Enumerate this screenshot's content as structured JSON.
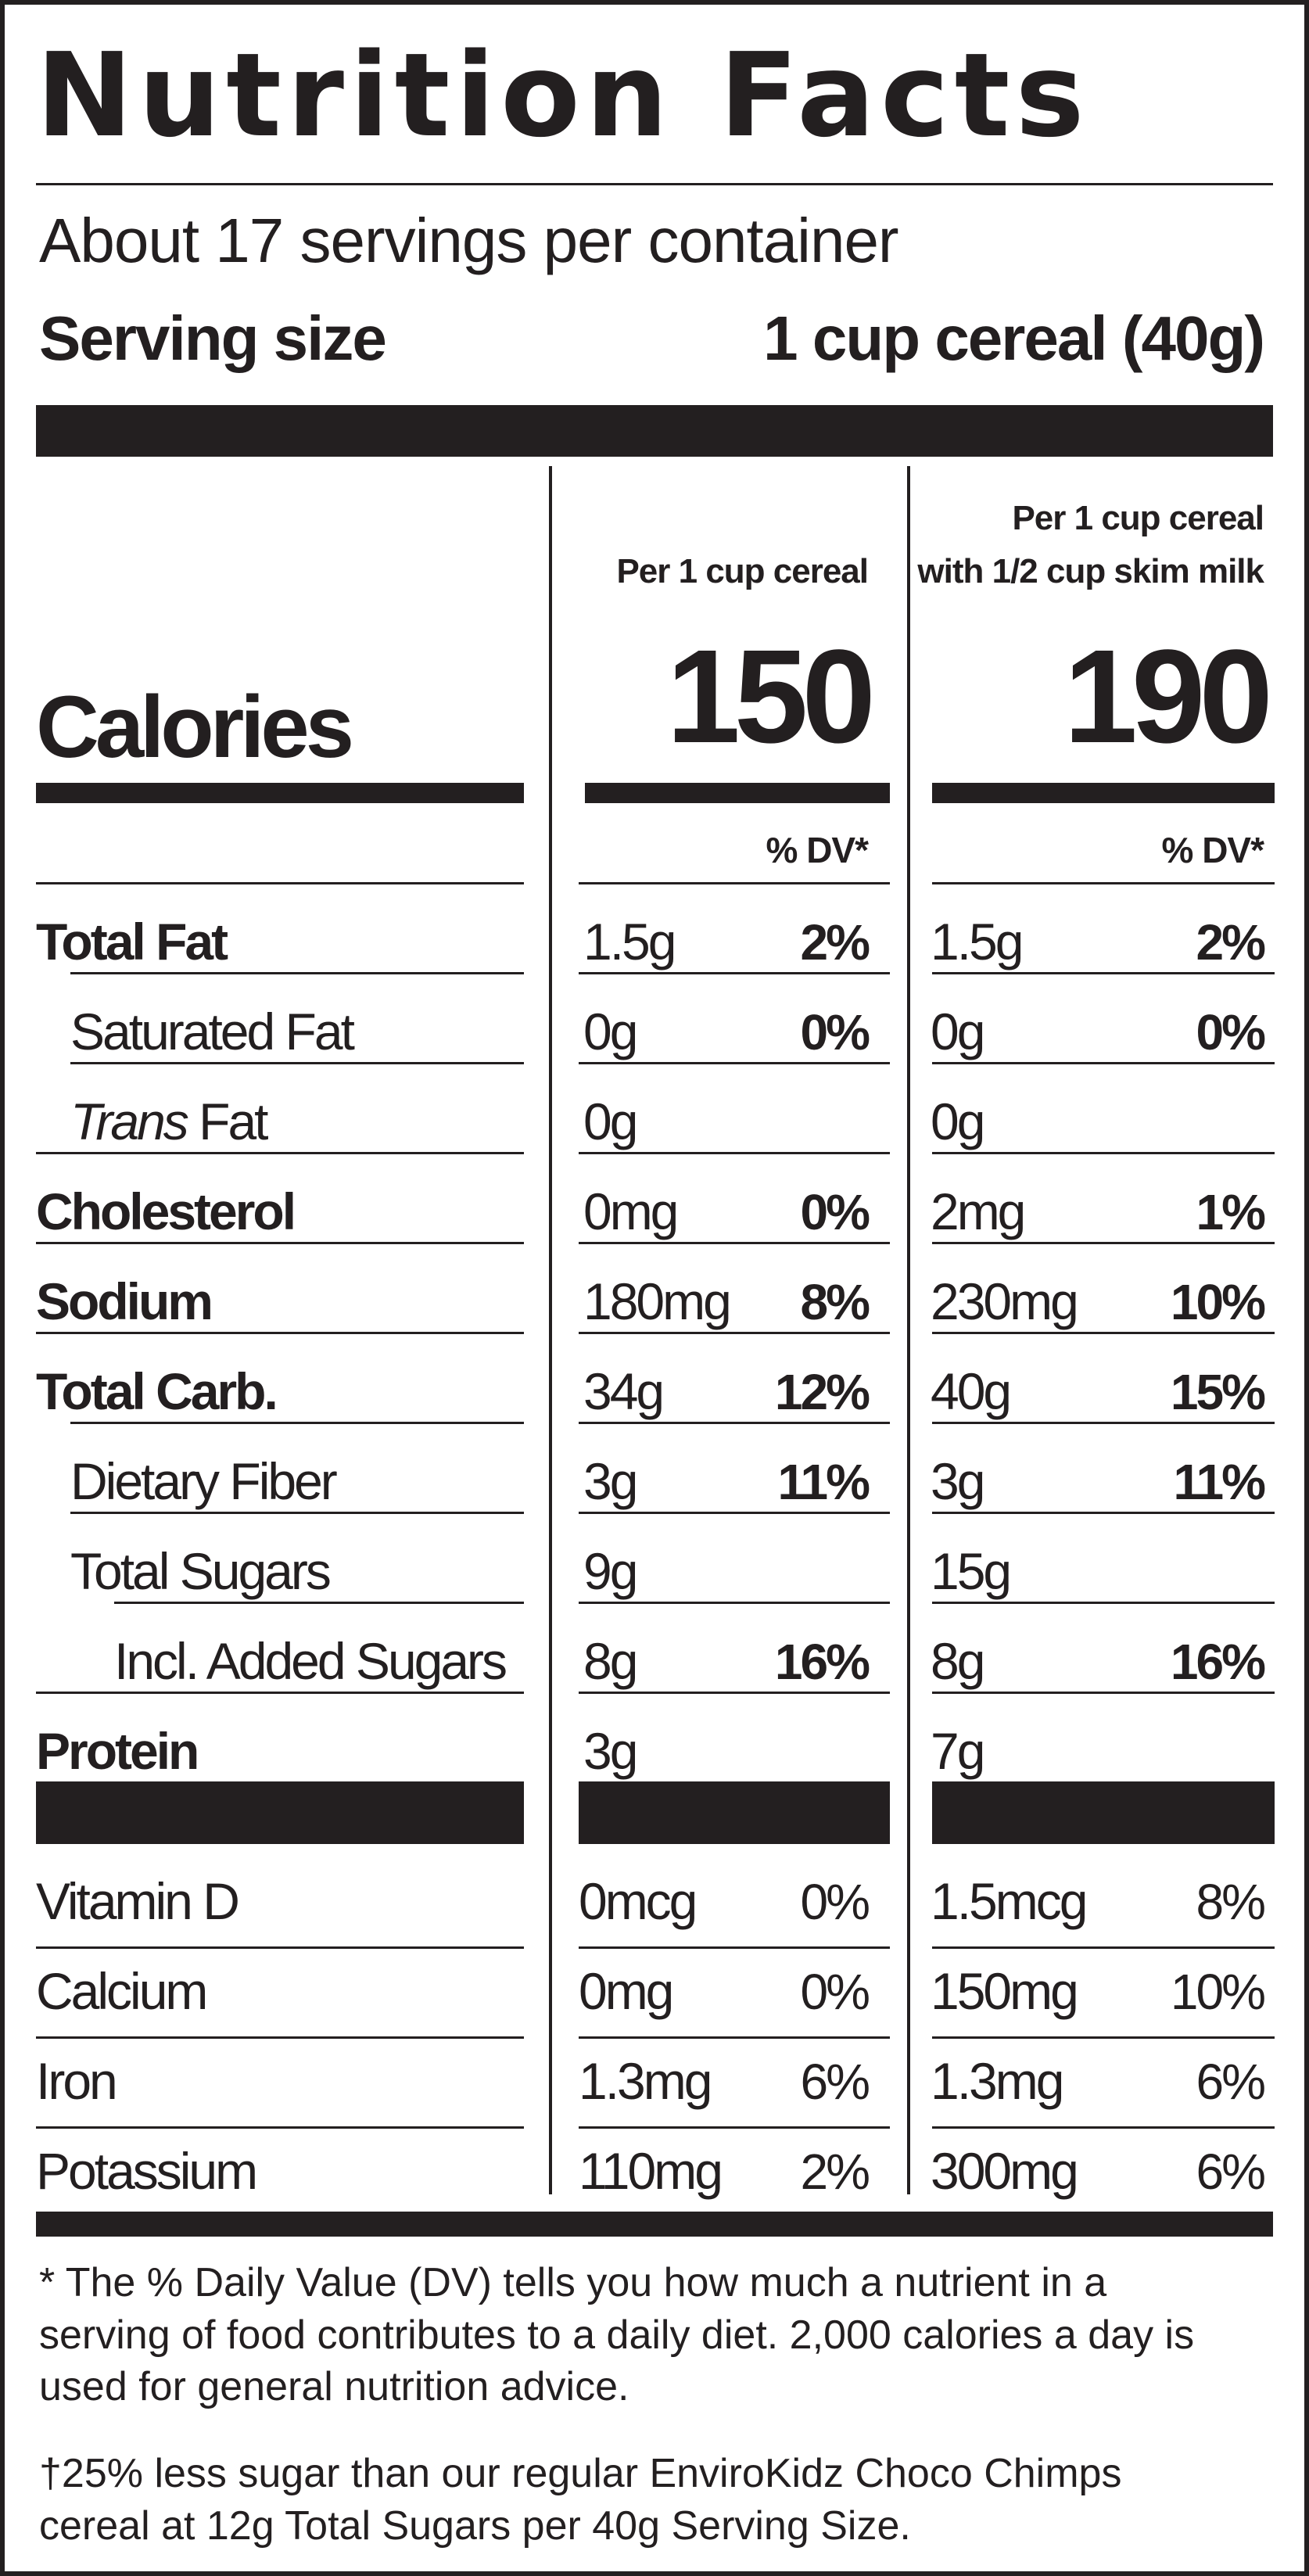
{
  "header": {
    "title": "Nutrition Facts",
    "servings_per_container": "About 17 servings per container",
    "serving_size_label": "Serving size",
    "serving_size_value": "1 cup cereal (40g)"
  },
  "columns": {
    "col1_head": "Per 1 cup cereal",
    "col2_head_line1": "Per 1  cup cereal",
    "col2_head_line2": "with 1/2 cup skim milk",
    "dv_head": "% DV*"
  },
  "calories": {
    "label": "Calories",
    "col1": "150",
    "col2": "190"
  },
  "nutrients": [
    {
      "name": "Total Fat",
      "amt1": "1.5g",
      "dv1": "2%",
      "amt2": "1.5g",
      "dv2": "2%"
    },
    {
      "name": "Saturated Fat",
      "amt1": "0g",
      "dv1": "0%",
      "amt2": "0g",
      "dv2": "0%"
    },
    {
      "name_italic": "Trans",
      "name_rest": " Fat",
      "amt1": "0g",
      "dv1": "",
      "amt2": "0g",
      "dv2": ""
    },
    {
      "name": "Cholesterol",
      "amt1": "0mg",
      "dv1": "0%",
      "amt2": "2mg",
      "dv2": "1%"
    },
    {
      "name": "Sodium",
      "amt1": "180mg",
      "dv1": "8%",
      "amt2": "230mg",
      "dv2": "10%"
    },
    {
      "name": "Total Carb.",
      "amt1": "34g",
      "dv1": "12%",
      "amt2": "40g",
      "dv2": "15%"
    },
    {
      "name": "Dietary Fiber",
      "amt1": "3g",
      "dv1": "11%",
      "amt2": "3g",
      "dv2": "11%"
    },
    {
      "name": "Total Sugars",
      "amt1": "9g",
      "dv1": "",
      "amt2": "15g",
      "dv2": ""
    },
    {
      "name": "Incl. Added Sugars",
      "amt1": "8g",
      "dv1": "16%",
      "amt2": "8g",
      "dv2": "16%"
    },
    {
      "name": "Protein",
      "amt1": "3g",
      "dv1": "",
      "amt2": "7g",
      "dv2": ""
    }
  ],
  "micros": [
    {
      "name": "Vitamin D",
      "amt1": "0mcg",
      "dv1": "0%",
      "amt2": "1.5mcg",
      "dv2": "8%"
    },
    {
      "name": "Calcium",
      "amt1": "0mg",
      "dv1": "0%",
      "amt2": "150mg",
      "dv2": "10%"
    },
    {
      "name": "Iron",
      "amt1": "1.3mg",
      "dv1": "6%",
      "amt2": "1.3mg",
      "dv2": "6%"
    },
    {
      "name": "Potassium",
      "amt1": "110mg",
      "dv1": "2%",
      "amt2": "300mg",
      "dv2": "6%"
    }
  ],
  "footnotes": {
    "dv_note": "* The % Daily Value (DV) tells you how much a nutrient in a serving of food contributes to a daily diet. 2,000 calories a day is used for general nutrition advice.",
    "sugar_note": "†25% less sugar than our regular EnviroKidz Choco Chimps cereal at 12g Total Sugars per 40g Serving Size."
  }
}
